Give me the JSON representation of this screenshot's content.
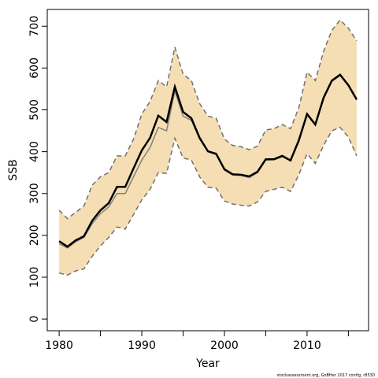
{
  "chart_data": {
    "type": "line",
    "xlabel": "Year",
    "ylabel": "SSB",
    "footnote": "stockassessment.org, GoBHer 2017 config, r8530",
    "x": [
      1980,
      1981,
      1982,
      1983,
      1984,
      1985,
      1986,
      1987,
      1988,
      1989,
      1990,
      1991,
      1992,
      1993,
      1994,
      1995,
      1996,
      1997,
      1998,
      1999,
      2000,
      2001,
      2002,
      2003,
      2004,
      2005,
      2006,
      2007,
      2008,
      2009,
      2010,
      2011,
      2012,
      2013,
      2014,
      2015,
      2016
    ],
    "band": {
      "color": "#f5deb3",
      "upper": [
        260,
        240,
        255,
        270,
        320,
        340,
        350,
        390,
        390,
        430,
        490,
        520,
        570,
        555,
        650,
        585,
        570,
        515,
        485,
        480,
        430,
        415,
        412,
        405,
        413,
        452,
        455,
        465,
        455,
        505,
        590,
        570,
        640,
        690,
        715,
        695,
        665
      ],
      "lower": [
        110,
        105,
        115,
        120,
        150,
        175,
        195,
        220,
        215,
        250,
        285,
        310,
        350,
        348,
        432,
        385,
        380,
        340,
        315,
        313,
        282,
        275,
        272,
        270,
        280,
        305,
        310,
        315,
        305,
        345,
        395,
        372,
        415,
        450,
        458,
        435,
        390
      ],
      "line_color": "#707070"
    },
    "series": [
      {
        "color": "#808080",
        "values": [
          180,
          170,
          185,
          195,
          228,
          252,
          268,
          300,
          300,
          340,
          380,
          410,
          458,
          450,
          545,
          485,
          475,
          430,
          400,
          393,
          356,
          344,
          343,
          338,
          350,
          380,
          381,
          388,
          378,
          425,
          488,
          463,
          527,
          568,
          582,
          557,
          523
        ]
      },
      {
        "color": "#000000",
        "values": [
          186,
          173,
          188,
          198,
          235,
          260,
          277,
          316,
          316,
          360,
          403,
          433,
          486,
          471,
          555,
          495,
          480,
          433,
          401,
          395,
          358,
          346,
          345,
          341,
          352,
          382,
          382,
          390,
          379,
          427,
          490,
          465,
          529,
          570,
          584,
          559,
          525
        ]
      }
    ],
    "xlim": [
      1978.56,
      2017.44
    ],
    "xticks": [
      1980,
      1990,
      2000,
      2010
    ],
    "xminorticks": [
      1985,
      1995,
      2005,
      2015
    ],
    "ylim": [
      -28,
      740
    ],
    "yticks": [
      0,
      100,
      200,
      300,
      400,
      500,
      600,
      700
    ]
  }
}
